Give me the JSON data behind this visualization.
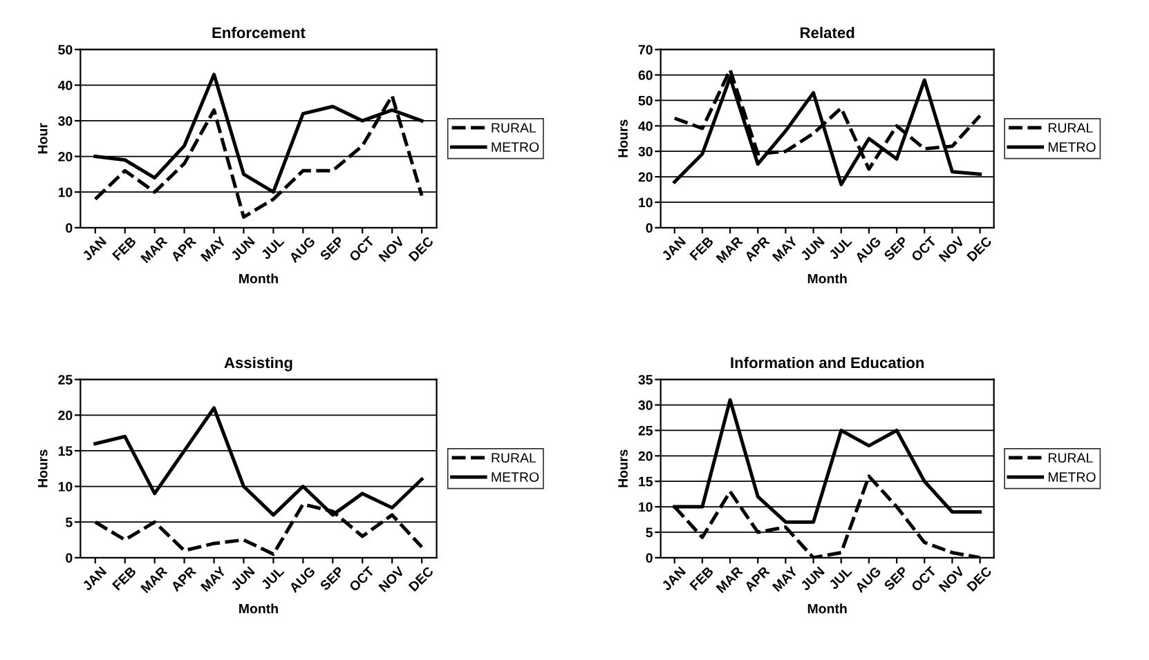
{
  "chart_data": [
    {
      "type": "line",
      "title": "Enforcement",
      "xlabel": "Month",
      "ylabel": "Hour",
      "categories": [
        "JAN",
        "FEB",
        "MAR",
        "APR",
        "MAY",
        "JUN",
        "JUL",
        "AUG",
        "SEP",
        "OCT",
        "NOV",
        "DEC"
      ],
      "ylim": [
        0,
        50
      ],
      "yticks": [
        0,
        10,
        20,
        30,
        40,
        50
      ],
      "grid": "y",
      "legend": "right",
      "series": [
        {
          "name": "RURAL",
          "color": "#000000",
          "line_style": "dashed",
          "values": [
            8,
            16,
            10,
            18,
            33,
            3,
            8,
            16,
            16,
            23,
            37,
            9
          ]
        },
        {
          "name": "METRO",
          "color": "#000000",
          "line_style": "solid",
          "values": [
            20,
            19,
            14,
            23,
            43,
            15,
            10,
            32,
            34,
            30,
            33,
            30
          ]
        }
      ]
    },
    {
      "type": "line",
      "title": "Related",
      "xlabel": "Month",
      "ylabel": "Hours",
      "categories": [
        "JAN",
        "FEB",
        "MAR",
        "APR",
        "MAY",
        "JUN",
        "JUL",
        "AUG",
        "SEP",
        "OCT",
        "NOV",
        "DEC"
      ],
      "ylim": [
        0,
        70
      ],
      "yticks": [
        0,
        10,
        20,
        30,
        40,
        50,
        60,
        70
      ],
      "grid": "y",
      "legend": "right",
      "series": [
        {
          "name": "RURAL",
          "color": "#000000",
          "line_style": "dashed",
          "values": [
            43,
            39,
            62,
            29,
            30,
            37,
            47,
            23,
            40,
            31,
            32,
            44
          ]
        },
        {
          "name": "METRO",
          "color": "#000000",
          "line_style": "solid",
          "values": [
            18,
            29,
            59,
            25,
            38,
            53,
            17,
            35,
            27,
            58,
            22,
            21
          ]
        }
      ]
    },
    {
      "type": "line",
      "title": "Assisting",
      "xlabel": "Month",
      "ylabel": "Hours",
      "categories": [
        "JAN",
        "FEB",
        "MAR",
        "APR",
        "MAY",
        "JUN",
        "JUL",
        "AUG",
        "SEP",
        "OCT",
        "NOV",
        "DEC"
      ],
      "ylim": [
        0,
        25
      ],
      "yticks": [
        0,
        5,
        10,
        15,
        20,
        25
      ],
      "grid": "y",
      "legend": "right",
      "series": [
        {
          "name": "RURAL",
          "color": "#000000",
          "line_style": "dashed",
          "values": [
            5,
            2.5,
            5,
            1,
            2,
            2.5,
            0.5,
            7.5,
            6.5,
            3,
            6,
            1.5
          ]
        },
        {
          "name": "METRO",
          "color": "#000000",
          "line_style": "solid",
          "values": [
            16,
            17,
            9,
            15,
            21,
            10,
            6,
            10,
            6,
            9,
            7,
            11
          ]
        }
      ]
    },
    {
      "type": "line",
      "title": "Information and Education",
      "xlabel": "Month",
      "ylabel": "Hours",
      "categories": [
        "JAN",
        "FEB",
        "MAR",
        "APR",
        "MAY",
        "JUN",
        "JUL",
        "AUG",
        "SEP",
        "OCT",
        "NOV",
        "DEC"
      ],
      "ylim": [
        0,
        35
      ],
      "yticks": [
        0,
        5,
        10,
        15,
        20,
        25,
        30,
        35
      ],
      "grid": "y",
      "legend": "right",
      "series": [
        {
          "name": "RURAL",
          "color": "#000000",
          "line_style": "dashed",
          "values": [
            10,
            4,
            13,
            5,
            6,
            0,
            1,
            16,
            10,
            3,
            1,
            0
          ]
        },
        {
          "name": "METRO",
          "color": "#000000",
          "line_style": "solid",
          "values": [
            10,
            10,
            31,
            12,
            7,
            7,
            25,
            22,
            25,
            15,
            9,
            9
          ]
        }
      ]
    }
  ]
}
